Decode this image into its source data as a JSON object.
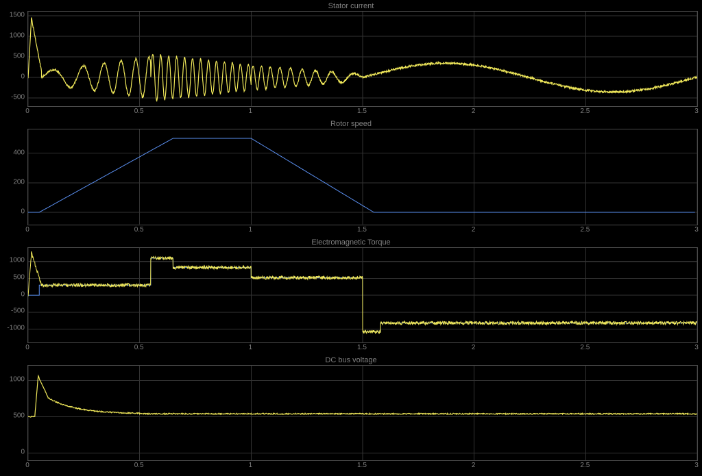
{
  "background_color": "#000000",
  "grid_color": "#333333",
  "border_color": "#4a4a4a",
  "tick_label_color": "#808080",
  "title_color": "#808080",
  "tick_fontsize": 10,
  "title_fontsize": 11,
  "xaxis": {
    "xlim": [
      0,
      3
    ],
    "ticks": [
      0,
      0.5,
      1,
      1.5,
      2,
      2.5,
      3
    ],
    "tick_labels": [
      "0",
      "0.5",
      "1",
      "1.5",
      "2",
      "2.5",
      "3"
    ]
  },
  "charts": [
    {
      "id": "stator-current",
      "title": "Stator current",
      "type": "line",
      "ylim": [
        -700,
        1600
      ],
      "yticks": [
        -500,
        0,
        500,
        1000,
        1500
      ],
      "ytick_labels": [
        "-500",
        "0",
        "500",
        "1000",
        "1500"
      ],
      "traces": [
        {
          "name": "stator-current-trace",
          "color": "#f0e85a",
          "stroke_width": 1.2,
          "noise_amplitude": 25,
          "noise_step": 0.0015,
          "segments": [
            {
              "type": "spike",
              "t0": 0.0,
              "t1": 0.06,
              "y0": 0,
              "peak": 1450,
              "y1": 150
            },
            {
              "type": "sine",
              "t0": 0.06,
              "t1": 0.55,
              "baseline": 0,
              "amp_start": 150,
              "amp_end": 500,
              "freq_start": 4,
              "freq_end": 18
            },
            {
              "type": "sine",
              "t0": 0.55,
              "t1": 1.0,
              "baseline": 0,
              "amp_start": 580,
              "amp_end": 300,
              "freq_start": 28,
              "freq_end": 28
            },
            {
              "type": "sine",
              "t0": 1.0,
              "t1": 1.5,
              "baseline": 0,
              "amp_start": 300,
              "amp_end": 80,
              "freq_start": 28,
              "freq_end": 6
            },
            {
              "type": "sine",
              "t0": 1.5,
              "t1": 3.0,
              "baseline": 0,
              "amp_start": 350,
              "amp_end": 350,
              "freq_start": 0.67,
              "freq_end": 0.67
            }
          ]
        }
      ]
    },
    {
      "id": "rotor-speed",
      "title": "Rotor speed",
      "type": "line",
      "ylim": [
        -80,
        560
      ],
      "yticks": [
        0,
        200,
        400
      ],
      "ytick_labels": [
        "0",
        "200",
        "400"
      ],
      "traces": [
        {
          "name": "rotor-speed-trace",
          "color": "#5a8ff0",
          "stroke_width": 1,
          "noise_amplitude": 0,
          "noise_step": 0.02,
          "segments": [
            {
              "type": "ramp",
              "t0": 0.0,
              "t1": 0.05,
              "y0": 0,
              "y1": 0
            },
            {
              "type": "ramp",
              "t0": 0.05,
              "t1": 0.65,
              "y0": 0,
              "y1": 500
            },
            {
              "type": "ramp",
              "t0": 0.65,
              "t1": 1.0,
              "y0": 500,
              "y1": 500
            },
            {
              "type": "ramp",
              "t0": 1.0,
              "t1": 1.55,
              "y0": 500,
              "y1": 0
            },
            {
              "type": "ramp",
              "t0": 1.55,
              "t1": 3.0,
              "y0": 0,
              "y1": 0
            }
          ]
        }
      ]
    },
    {
      "id": "em-torque",
      "title": "Electromagnetic Torque",
      "type": "line",
      "ylim": [
        -1400,
        1400
      ],
      "yticks": [
        -1000,
        -500,
        0,
        500,
        1000
      ],
      "ytick_labels": [
        "-1000",
        "-500",
        "0",
        "500",
        "1000"
      ],
      "traces": [
        {
          "name": "torque-ref-trace",
          "color": "#5a8ff0",
          "stroke_width": 1,
          "noise_amplitude": 0,
          "noise_step": 0.01,
          "segments": [
            {
              "type": "step",
              "t0": 0.0,
              "t1": 0.05,
              "y": 0
            },
            {
              "type": "step",
              "t0": 0.05,
              "t1": 0.55,
              "y": 300
            },
            {
              "type": "step",
              "t0": 0.55,
              "t1": 0.65,
              "y": 1100
            },
            {
              "type": "step",
              "t0": 0.65,
              "t1": 1.0,
              "y": 820
            },
            {
              "type": "step",
              "t0": 1.0,
              "t1": 1.5,
              "y": 520
            },
            {
              "type": "step",
              "t0": 1.5,
              "t1": 1.58,
              "y": -1080
            },
            {
              "type": "step",
              "t0": 1.58,
              "t1": 3.0,
              "y": -820
            }
          ]
        },
        {
          "name": "torque-actual-trace",
          "color": "#f0e85a",
          "stroke_width": 1,
          "noise_amplitude": 50,
          "noise_step": 0.0015,
          "segments": [
            {
              "type": "spike",
              "t0": 0.0,
              "t1": 0.06,
              "y0": 0,
              "peak": 1250,
              "y1": 300
            },
            {
              "type": "step",
              "t0": 0.06,
              "t1": 0.55,
              "y": 300
            },
            {
              "type": "step",
              "t0": 0.55,
              "t1": 0.65,
              "y": 1100
            },
            {
              "type": "step",
              "t0": 0.65,
              "t1": 1.0,
              "y": 820
            },
            {
              "type": "step",
              "t0": 1.0,
              "t1": 1.5,
              "y": 520
            },
            {
              "type": "step",
              "t0": 1.5,
              "t1": 1.58,
              "y": -1080
            },
            {
              "type": "step",
              "t0": 1.58,
              "t1": 3.0,
              "y": -820
            }
          ]
        }
      ]
    },
    {
      "id": "dc-bus",
      "title": "DC bus voltage",
      "type": "line",
      "ylim": [
        -100,
        1200
      ],
      "yticks": [
        0,
        500,
        1000
      ],
      "ytick_labels": [
        "0",
        "500",
        "1000"
      ],
      "traces": [
        {
          "name": "dc-bus-trace",
          "color": "#f0e85a",
          "stroke_width": 1.2,
          "noise_amplitude": 8,
          "noise_step": 0.002,
          "segments": [
            {
              "type": "step",
              "t0": 0.0,
              "t1": 0.03,
              "y": 500
            },
            {
              "type": "spike",
              "t0": 0.03,
              "t1": 0.09,
              "y0": 500,
              "peak": 1060,
              "y1": 760
            },
            {
              "type": "decay",
              "t0": 0.09,
              "t1": 0.5,
              "y0": 760,
              "y1": 540,
              "tau": 0.12
            },
            {
              "type": "step",
              "t0": 0.5,
              "t1": 3.0,
              "y": 540
            }
          ]
        }
      ]
    }
  ]
}
